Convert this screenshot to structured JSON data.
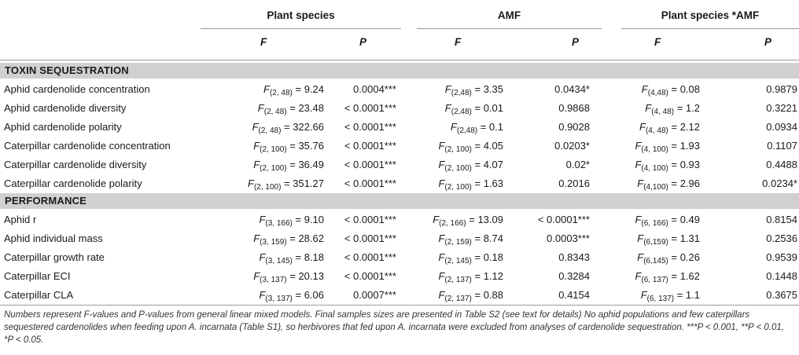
{
  "header": {
    "groups": [
      "Plant species",
      "AMF",
      "Plant species *AMF"
    ],
    "stat_f": "F",
    "stat_p": "P"
  },
  "sections": [
    {
      "title": "TOXIN SEQUESTRATION",
      "rows": [
        {
          "label": "Aphid cardenolide concentration",
          "f1s": "(2, 48)",
          "f1v": " = 9.24",
          "p1": "0.0004***",
          "f2s": "(2,48)",
          "f2v": " = 3.35",
          "p2": "0.0434*",
          "f3s": "(4,48)",
          "f3v": " = 0.08",
          "p3": "0.9879"
        },
        {
          "label": "Aphid cardenolide diversity",
          "f1s": "(2, 48)",
          "f1v": " = 23.48",
          "p1": "< 0.0001***",
          "f2s": "(2,48)",
          "f2v": " = 0.01",
          "p2": "0.9868",
          "f3s": "(4, 48)",
          "f3v": " = 1.2",
          "p3": "0.3221"
        },
        {
          "label": "Aphid cardenolide polarity",
          "f1s": "(2, 48)",
          "f1v": " = 322.66",
          "p1": "< 0.0001***",
          "f2s": "(2,48)",
          "f2v": " = 0.1",
          "p2": "0.9028",
          "f3s": "(4, 48)",
          "f3v": " = 2.12",
          "p3": "0.0934"
        },
        {
          "label": "Caterpillar cardenolide concentration",
          "f1s": "(2, 100)",
          "f1v": " = 35.76",
          "p1": "< 0.0001***",
          "f2s": "(2, 100)",
          "f2v": " = 4.05",
          "p2": "0.0203*",
          "f3s": "(4, 100)",
          "f3v": " = 1.93",
          "p3": "0.1107"
        },
        {
          "label": "Caterpillar cardenolide diversity",
          "f1s": "(2, 100)",
          "f1v": " = 36.49",
          "p1": "< 0.0001***",
          "f2s": "(2, 100)",
          "f2v": " = 4.07",
          "p2": "0.02*",
          "f3s": "(4, 100)",
          "f3v": " = 0.93",
          "p3": "0.4488"
        },
        {
          "label": "Caterpillar cardenolide polarity",
          "f1s": "(2, 100)",
          "f1v": " = 351.27",
          "p1": "< 0.0001***",
          "f2s": "(2, 100)",
          "f2v": " = 1.63",
          "p2": "0.2016",
          "f3s": "(4,100)",
          "f3v": " = 2.96",
          "p3": "0.0234*"
        }
      ]
    },
    {
      "title": "PERFORMANCE",
      "rows": [
        {
          "label": "Aphid r",
          "f1s": "(3, 166)",
          "f1v": " = 9.10",
          "p1": "< 0.0001***",
          "f2s": "(2, 166)",
          "f2v": " = 13.09",
          "p2": "< 0.0001***",
          "f3s": "(6, 166)",
          "f3v": " = 0.49",
          "p3": "0.8154"
        },
        {
          "label": "Aphid individual mass",
          "f1s": "(3, 159)",
          "f1v": " = 28.62",
          "p1": "< 0.0001***",
          "f2s": "(2, 159)",
          "f2v": " = 8.74",
          "p2": "0.0003***",
          "f3s": "(6,159)",
          "f3v": " = 1.31",
          "p3": "0.2536"
        },
        {
          "label": "Caterpillar growth rate",
          "f1s": "(3, 145)",
          "f1v": " = 8.18",
          "p1": "< 0.0001***",
          "f2s": "(2, 145)",
          "f2v": " = 0.18",
          "p2": "0.8343",
          "f3s": "(6,145)",
          "f3v": " = 0.26",
          "p3": "0.9539"
        },
        {
          "label": "Caterpillar ECI",
          "f1s": "(3, 137)",
          "f1v": " = 20.13",
          "p1": "< 0.0001***",
          "f2s": "(2, 137)",
          "f2v": " = 1.12",
          "p2": "0.3284",
          "f3s": "(6, 137)",
          "f3v": " = 1.62",
          "p3": "0.1448"
        },
        {
          "label": "Caterpillar CLA",
          "f1s": "(3, 137)",
          "f1v": " = 6.06",
          "p1": "0.0007***",
          "f2s": "(2, 137)",
          "f2v": " = 0.88",
          "p2": "0.4154",
          "f3s": "(6, 137)",
          "f3v": " = 1.1",
          "p3": "0.3675"
        }
      ]
    }
  ],
  "footnote": "Numbers represent F-values and P-values from general linear mixed models. Final samples sizes are presented in Table S2 (see text for details) No aphid populations and few caterpillars sequestered cardenolides when feeding upon A. incarnata (Table S1), so herbivores that fed upon A. incarnata were excluded from analyses of cardenolide sequestration. ***P < 0.001, **P < 0.01, *P < 0.05."
}
